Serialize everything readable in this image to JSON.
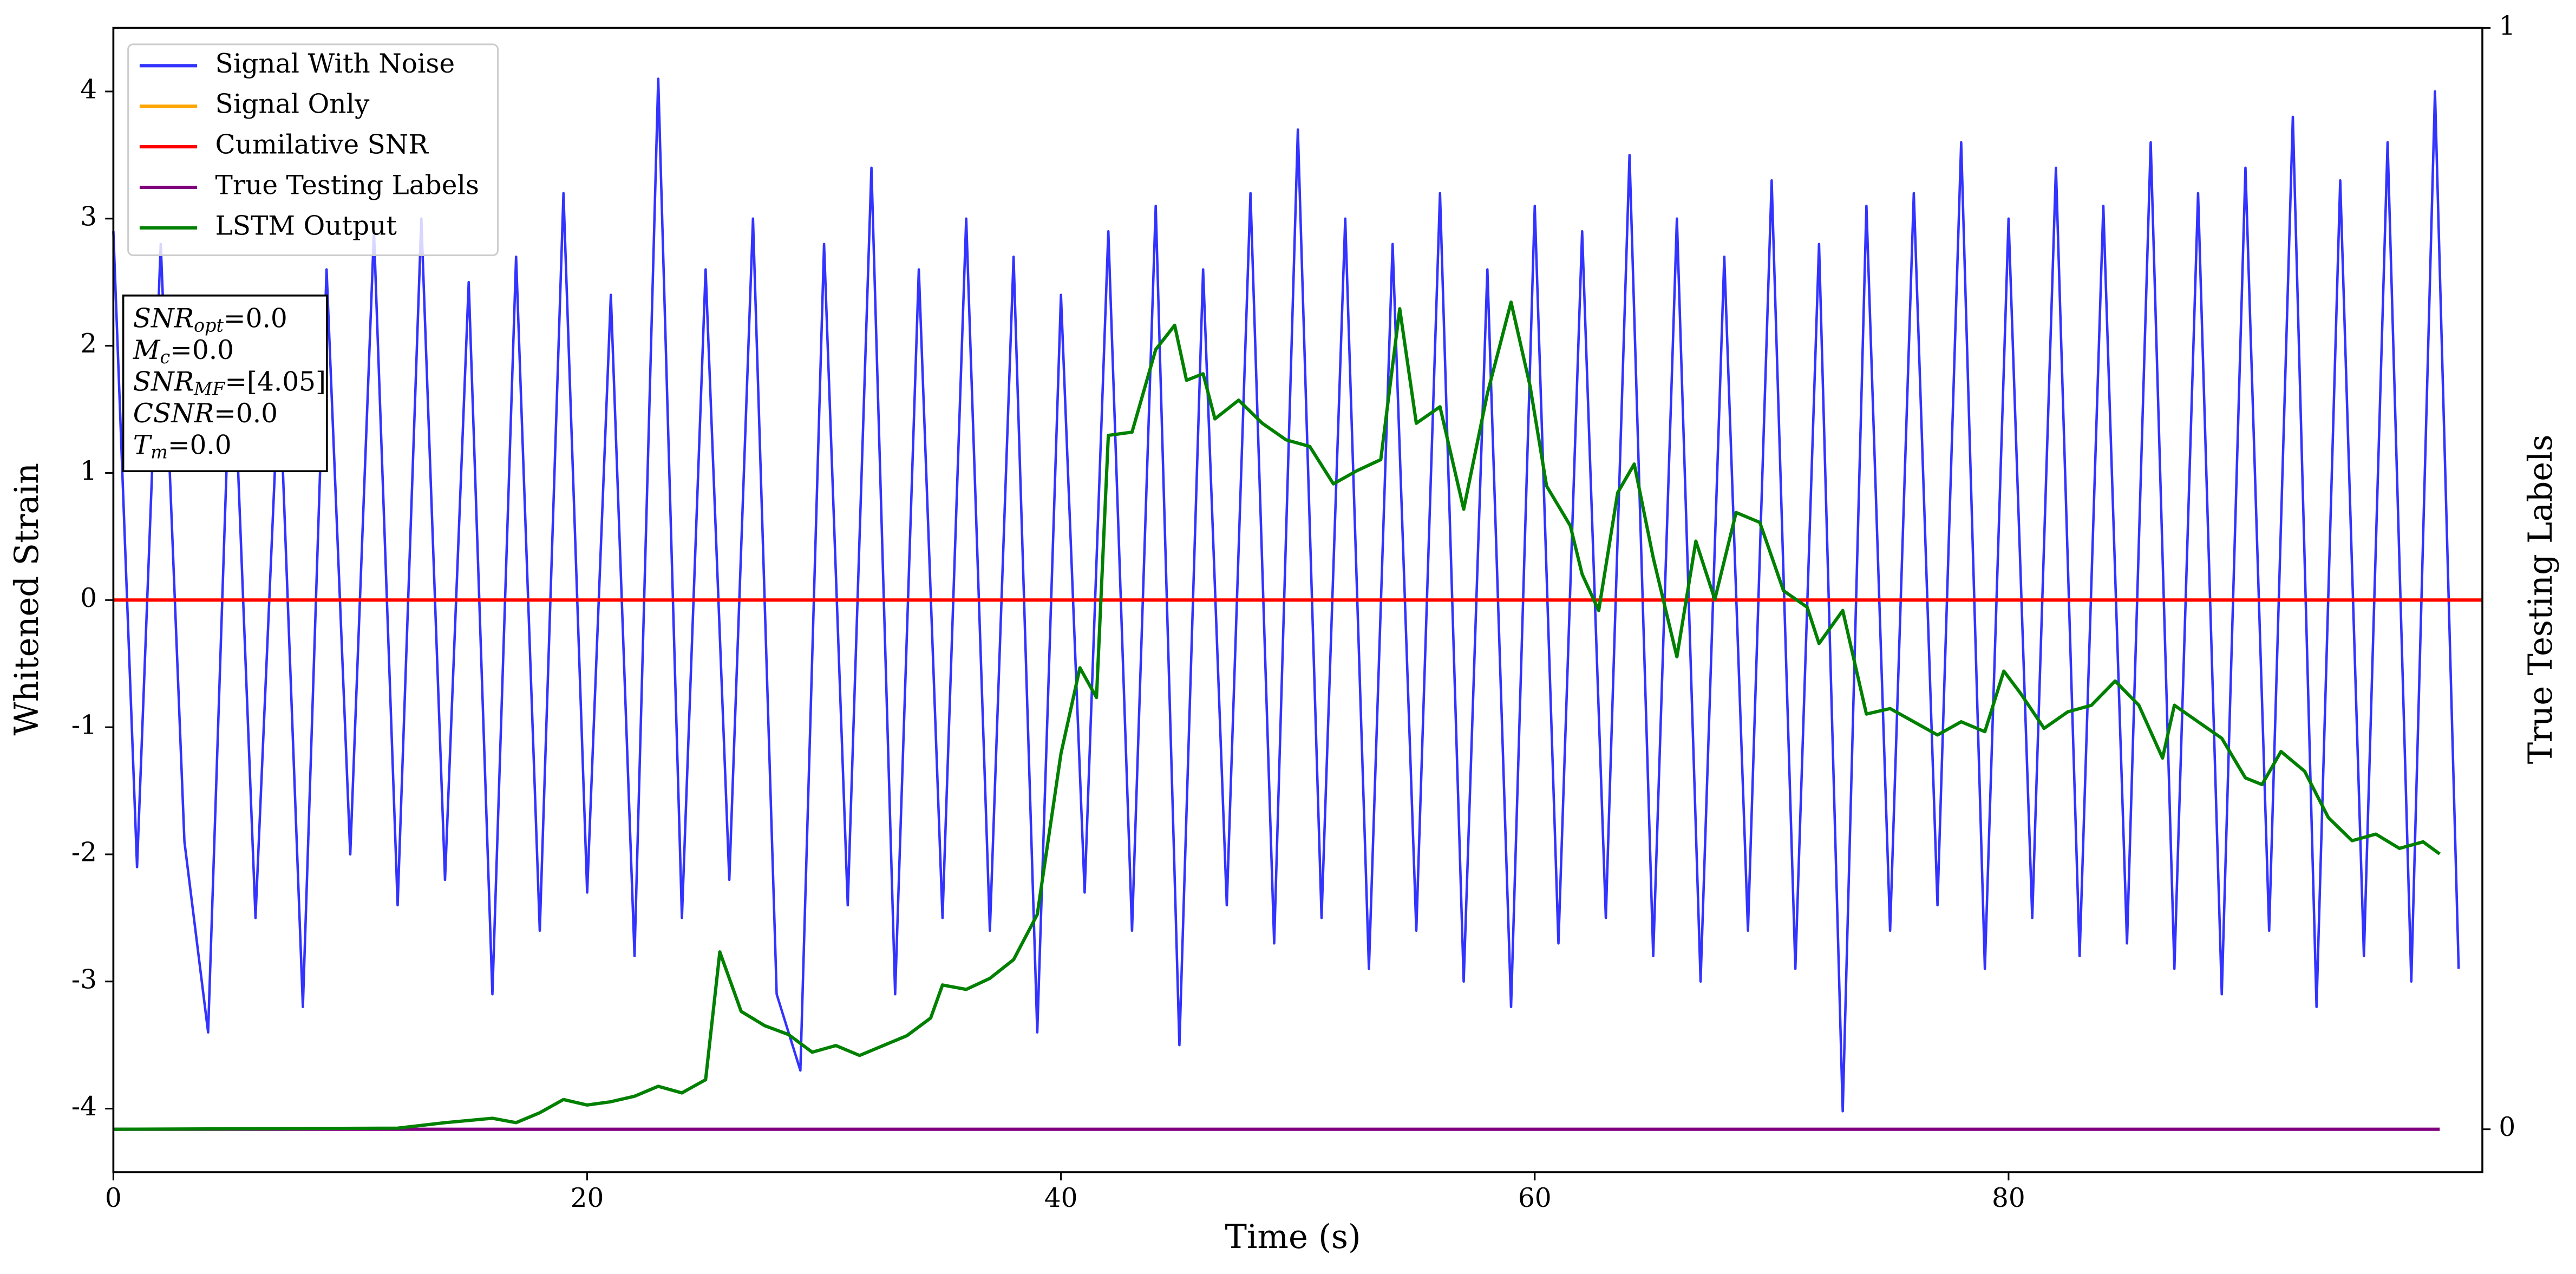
{
  "chart_data": {
    "type": "line",
    "xlabel": "Time (s)",
    "ylabel": "Whitened Strain",
    "y2label": "True Testing Labels",
    "xlim": [
      0,
      100
    ],
    "xticks": [
      0,
      20,
      40,
      60,
      80
    ],
    "ylim": [
      -4.5,
      4.5
    ],
    "yticks": [
      -4,
      -3,
      -2,
      -1,
      0,
      1,
      2,
      3,
      4
    ],
    "y2lim": [
      -0.039,
      1
    ],
    "y2ticks": [
      0,
      1
    ],
    "legend": "upper left",
    "annotation": [
      {
        "name": "SNR",
        "subscript": "opt",
        "text": "=0.0"
      },
      {
        "name": "M",
        "subscript": "c",
        "text": "=0.0"
      },
      {
        "name": "SNR",
        "subscript": "MF",
        "text": "=[4.05]"
      },
      {
        "name": "CSNR",
        "text": "=0.0"
      },
      {
        "name": "T",
        "subscript": "m",
        "text": "=0.0"
      }
    ],
    "series": [
      {
        "name": "Signal With Noise",
        "color": "#3333ff",
        "axis": "y",
        "x": [
          0,
          1,
          2,
          3,
          4,
          5,
          6,
          7,
          8,
          9,
          10,
          11,
          12,
          13,
          14,
          15,
          16,
          17,
          18,
          19,
          20,
          21,
          22,
          23,
          24,
          25,
          26,
          27,
          28,
          29,
          30,
          31,
          32,
          33,
          34,
          35,
          36,
          37,
          38,
          39,
          40,
          41,
          42,
          43,
          44,
          45,
          46,
          47,
          48,
          49,
          50,
          51,
          52,
          53,
          54,
          55,
          56,
          57,
          58,
          59,
          60,
          61,
          62,
          63,
          64,
          65,
          66,
          67,
          68,
          69,
          70,
          71,
          72,
          73,
          74,
          75,
          76,
          77,
          78,
          79,
          80,
          81,
          82,
          83,
          84,
          85,
          86,
          87,
          88,
          89,
          90,
          91,
          92,
          93,
          94,
          95,
          96,
          97,
          98,
          99
        ],
        "values": [
          2.9,
          -2.1,
          2.8,
          -1.9,
          -3.4,
          2.3,
          -2.5,
          1.8,
          -3.2,
          2.6,
          -2.0,
          2.9,
          -2.4,
          3.0,
          -2.2,
          2.5,
          -3.1,
          2.7,
          -2.6,
          3.2,
          -2.3,
          2.4,
          -2.8,
          4.1,
          -2.5,
          2.6,
          -2.2,
          3.0,
          -3.1,
          -3.7,
          2.8,
          -2.4,
          3.4,
          -3.1,
          2.6,
          -2.5,
          3.0,
          -2.6,
          2.7,
          -3.4,
          2.4,
          -2.3,
          2.9,
          -2.6,
          3.1,
          -3.5,
          2.6,
          -2.4,
          3.2,
          -2.7,
          3.7,
          -2.5,
          3.0,
          -2.9,
          2.8,
          -2.6,
          3.2,
          -3.0,
          2.6,
          -3.2,
          3.1,
          -2.7,
          2.9,
          -2.5,
          3.5,
          -2.8,
          3.0,
          -3.0,
          2.7,
          -2.6,
          3.3,
          -2.9,
          2.8,
          -4.02,
          3.1,
          -2.6,
          3.2,
          -2.4,
          3.6,
          -2.9,
          3.0,
          -2.5,
          3.4,
          -2.8,
          3.1,
          -2.7,
          3.6,
          -2.9,
          3.2,
          -3.1,
          3.4,
          -2.6,
          3.8,
          -3.2,
          3.3,
          -2.8,
          3.6,
          -3.0,
          4.0,
          -2.9
        ]
      },
      {
        "name": "Signal Only",
        "color": "#ffa500",
        "axis": "y",
        "x": [
          0,
          100
        ],
        "values": [
          0,
          0
        ]
      },
      {
        "name": "Cumilative SNR",
        "color": "#ff0000",
        "axis": "y",
        "x": [
          0,
          100
        ],
        "values": [
          0,
          0
        ]
      },
      {
        "name": "True Testing Labels",
        "color": "#800080",
        "axis": "y2",
        "x": [
          0,
          98.2
        ],
        "values": [
          0,
          0
        ]
      },
      {
        "name": "LSTM Output",
        "color": "#008000",
        "axis": "y2",
        "x": [
          0,
          12,
          14,
          16,
          17,
          18,
          19,
          20,
          21,
          22,
          23,
          24,
          25,
          25.6,
          26.5,
          27.5,
          28.5,
          29.5,
          30.5,
          31.5,
          32.5,
          33.5,
          34.5,
          35,
          36,
          37,
          38,
          39,
          40,
          40.8,
          41.5,
          42,
          43,
          44,
          44.8,
          45.3,
          46,
          46.5,
          47.5,
          48.5,
          49.5,
          50.5,
          51.5,
          52.5,
          53.5,
          54.3,
          55,
          56,
          57,
          58,
          59,
          59.8,
          60.5,
          61.5,
          62,
          62.7,
          63.5,
          64.2,
          65,
          66,
          66.8,
          67.6,
          68.5,
          69.5,
          70.5,
          71.5,
          72,
          73,
          74,
          75,
          76,
          77,
          78,
          79,
          79.8,
          80.5,
          81.5,
          82.5,
          83.5,
          84.5,
          85.5,
          86.5,
          87,
          88,
          89,
          90,
          90.7,
          91.5,
          92.5,
          93.5,
          94.5,
          95.5,
          96.5,
          97.5,
          98.2
        ],
        "values": [
          0,
          0.001,
          0.006,
          0.01,
          0.006,
          0.015,
          0.027,
          0.022,
          0.025,
          0.03,
          0.039,
          0.033,
          0.045,
          0.161,
          0.107,
          0.094,
          0.086,
          0.07,
          0.076,
          0.067,
          0.076,
          0.085,
          0.101,
          0.131,
          0.127,
          0.137,
          0.154,
          0.195,
          0.341,
          0.419,
          0.392,
          0.63,
          0.633,
          0.708,
          0.73,
          0.68,
          0.686,
          0.645,
          0.662,
          0.641,
          0.626,
          0.62,
          0.586,
          0.598,
          0.608,
          0.745,
          0.641,
          0.656,
          0.563,
          0.668,
          0.751,
          0.675,
          0.584,
          0.548,
          0.504,
          0.471,
          0.578,
          0.604,
          0.519,
          0.429,
          0.534,
          0.481,
          0.56,
          0.551,
          0.489,
          0.474,
          0.441,
          0.471,
          0.377,
          0.382,
          0.37,
          0.358,
          0.37,
          0.361,
          0.416,
          0.396,
          0.364,
          0.379,
          0.385,
          0.407,
          0.385,
          0.337,
          0.385,
          0.37,
          0.355,
          0.319,
          0.313,
          0.343,
          0.325,
          0.283,
          0.262,
          0.268,
          0.255,
          0.261,
          0.25
        ]
      }
    ]
  }
}
